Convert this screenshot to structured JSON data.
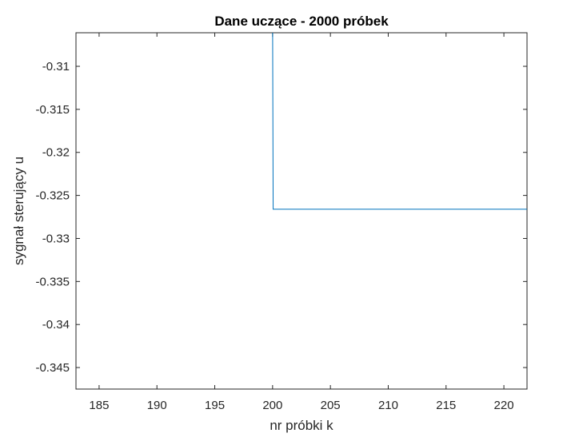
{
  "chart_data": {
    "type": "line",
    "title": "Dane uczące - 2000 próbek",
    "xlabel": "nr próbki k",
    "ylabel": "sygnał sterujący u",
    "xlim": [
      183,
      222
    ],
    "ylim": [
      -0.3475,
      -0.3061
    ],
    "x_ticks": [
      185,
      190,
      195,
      200,
      205,
      210,
      215,
      220
    ],
    "y_ticks": [
      -0.31,
      -0.315,
      -0.32,
      -0.325,
      -0.33,
      -0.335,
      -0.34,
      -0.345
    ],
    "grid": false,
    "legend": "none",
    "series": [
      {
        "color": "#0072BD",
        "x": [
          200,
          200,
          200.05,
          222
        ],
        "y": [
          -0.3061,
          -0.3046,
          -0.3266,
          -0.3266
        ]
      }
    ]
  }
}
